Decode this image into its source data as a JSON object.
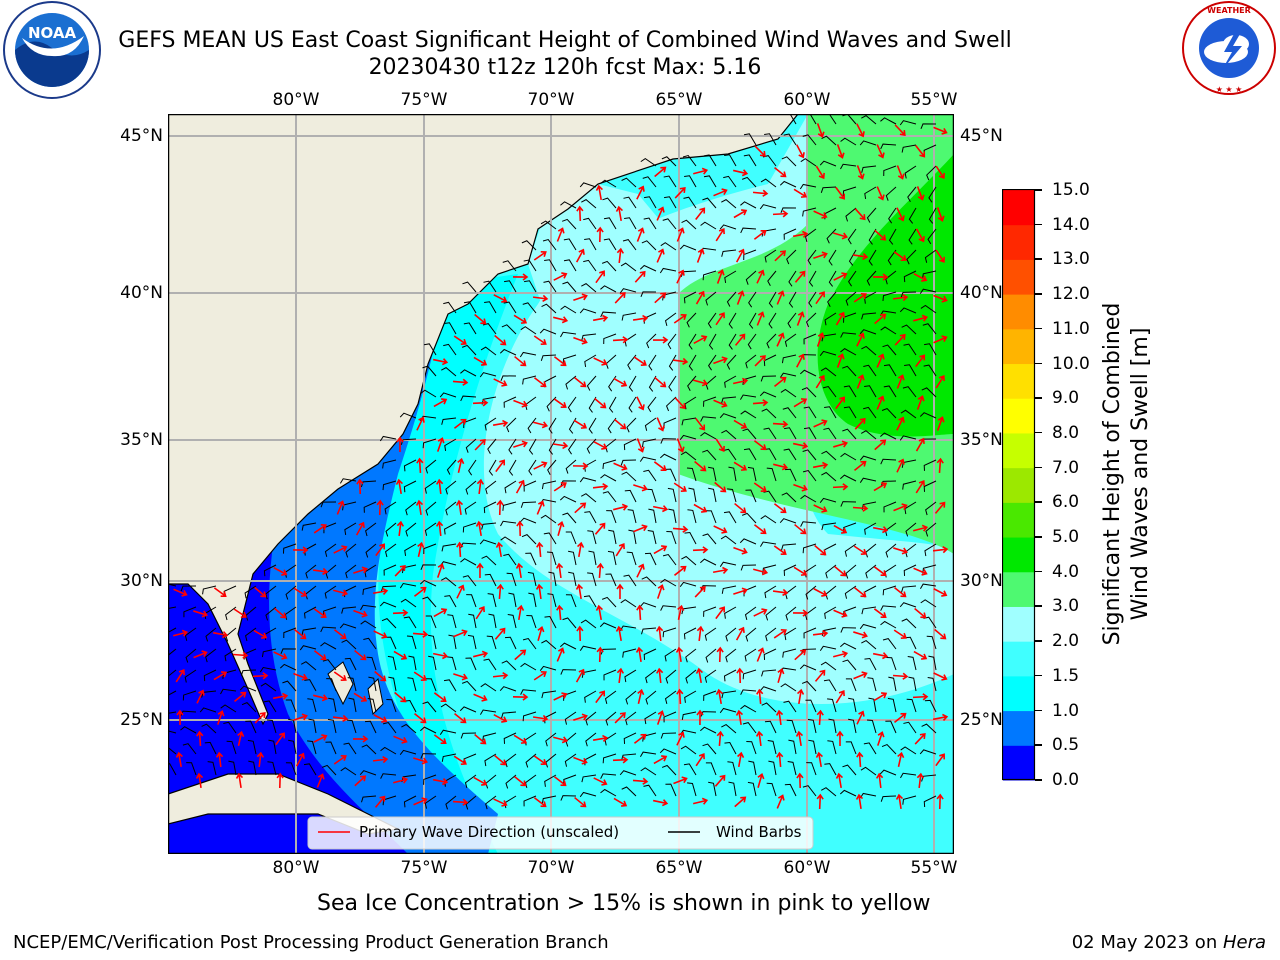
{
  "title_line1": "GEFS MEAN US East Coast Significant Height of Combined Wind Waves and Swell",
  "title_line2": "20230430 t12z 120h fcst   Max: 5.16",
  "logos": {
    "left": "noaa-logo",
    "left_text": "NOAA",
    "left_ring_text": "NATIONAL OCEANIC AND ATMOSPHERIC ADMINISTRATION · U.S. DEPARTMENT OF COMMERCE",
    "right": "national-weather-service-logo",
    "right_ring_text": "NATIONAL WEATHER SERVICE"
  },
  "map": {
    "lon_ticks": [
      "80°W",
      "75°W",
      "70°W",
      "65°W",
      "60°W",
      "55°W"
    ],
    "lat_ticks": [
      "45°N",
      "40°N",
      "35°N",
      "30°N",
      "25°N"
    ],
    "colors": {
      "land": "#efedde",
      "coast": "#000000",
      "grid": "#b0b0b0",
      "arrow": "#ff0000",
      "barb": "#000000"
    },
    "max_value": 5.16
  },
  "legend": {
    "arrow_label": "Primary Wave Direction (unscaled)",
    "barb_label": "Wind Barbs"
  },
  "colorbar": {
    "label_line1": "Significant Height of Combined",
    "label_line2": "Wind Waves and Swell [m]",
    "ticks": [
      "0.0",
      "0.5",
      "1.0",
      "1.5",
      "2.0",
      "3.0",
      "4.0",
      "5.0",
      "6.0",
      "7.0",
      "8.0",
      "9.0",
      "10.0",
      "11.0",
      "12.0",
      "13.0",
      "14.0",
      "15.0"
    ],
    "colors": [
      "#0000ff",
      "#0078ff",
      "#00ffff",
      "#40ffff",
      "#a0ffff",
      "#4ef971",
      "#00e800",
      "#4ae800",
      "#9ce800",
      "#c6ff00",
      "#ffff00",
      "#ffe000",
      "#ffb400",
      "#ff8c00",
      "#ff5000",
      "#ff2800",
      "#ff0000"
    ]
  },
  "note": "Sea Ice Concentration > 15% is shown in pink to yellow",
  "footer_left": "NCEP/EMC/Verification Post Processing Product Generation Branch",
  "footer_right_date": "02 May 2023 on ",
  "footer_right_host": "Hera"
}
